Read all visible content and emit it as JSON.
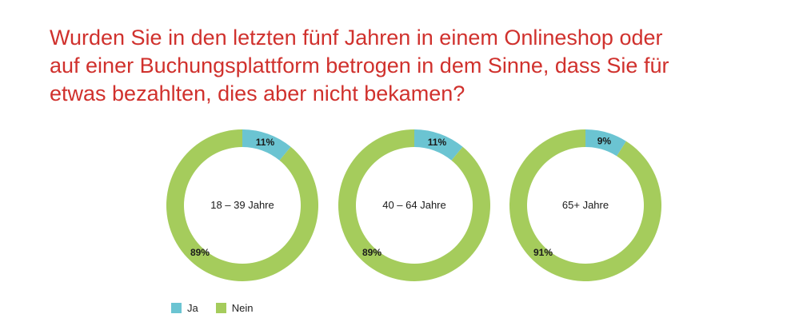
{
  "title_lines": [
    "Wurden Sie in den letzten fünf Jahren in einem Onlineshop oder",
    "auf einer Buchungsplattform betrogen in dem Sinne, dass Sie für",
    "etwas bezahlten, dies aber nicht bekamen?"
  ],
  "colors": {
    "ja": "#6bc4d2",
    "nein": "#a5cc5c",
    "title": "#d0312d"
  },
  "legend": [
    {
      "label": "Ja",
      "color": "#6bc4d2"
    },
    {
      "label": "Nein",
      "color": "#a5cc5c"
    }
  ],
  "chart_data": [
    {
      "type": "pie",
      "variant": "donut",
      "center_label": "18 – 39 Jahre",
      "slices": [
        {
          "name": "Ja",
          "value": 11,
          "label": "11%"
        },
        {
          "name": "Nein",
          "value": 89,
          "label": "89%"
        }
      ]
    },
    {
      "type": "pie",
      "variant": "donut",
      "center_label": "40 – 64 Jahre",
      "slices": [
        {
          "name": "Ja",
          "value": 11,
          "label": "11%"
        },
        {
          "name": "Nein",
          "value": 89,
          "label": "89%"
        }
      ]
    },
    {
      "type": "pie",
      "variant": "donut",
      "center_label": "65+ Jahre",
      "slices": [
        {
          "name": "Ja",
          "value": 9,
          "label": "9%"
        },
        {
          "name": "Nein",
          "value": 91,
          "label": "91%"
        }
      ]
    }
  ]
}
